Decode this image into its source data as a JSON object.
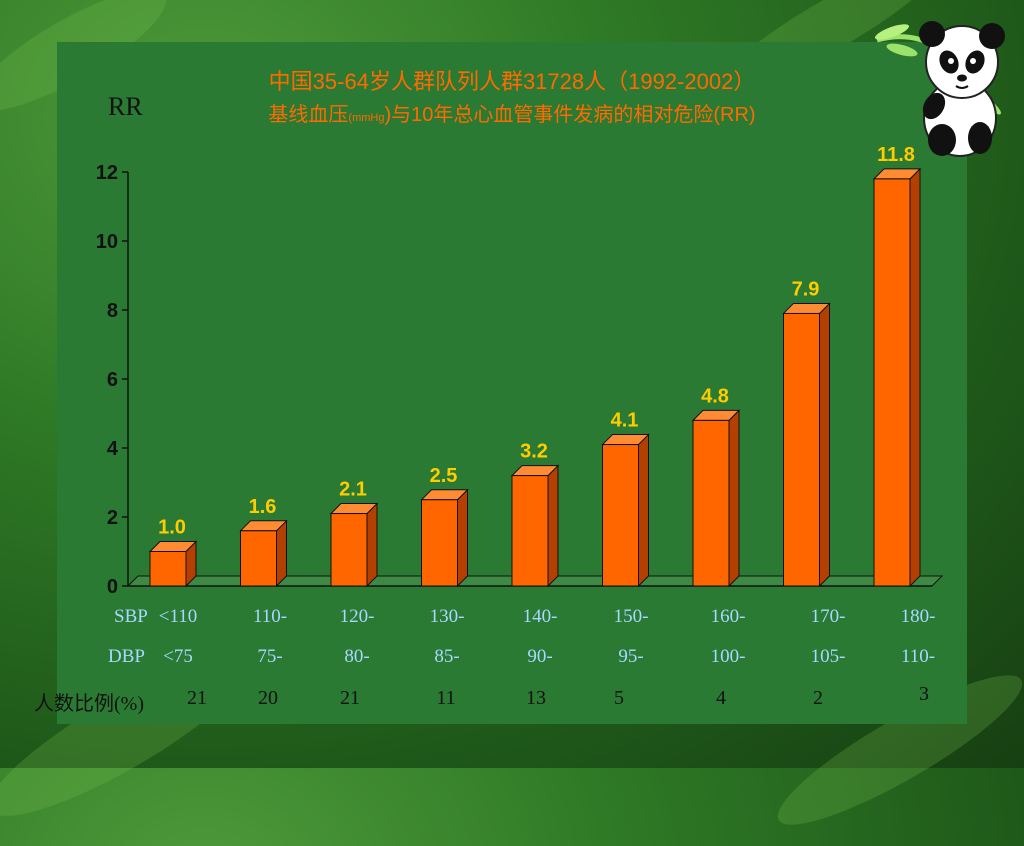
{
  "title_line1": "中国35-64岁人群队列人群31728人（1992-2002）",
  "title_line2_a": "基线血压",
  "title_line2_unit": "(mmHg",
  "title_line2_b": ")与10年总心血管事件发病的相对危险(RR)",
  "y_axis_label": "RR",
  "colors": {
    "bar_front": "#ff6600",
    "bar_side": "#b34000",
    "bar_top": "#ff8c33",
    "value_label": "#ffcc00"
  },
  "chart_data": {
    "type": "bar",
    "ylabel": "RR",
    "ylim": [
      0,
      12
    ],
    "yticks": [
      0,
      2,
      4,
      6,
      8,
      10,
      12
    ],
    "categories": [
      "<110 / <75",
      "110- / 75-",
      "120- / 80-",
      "130- / 85-",
      "140- / 90-",
      "150- / 95-",
      "160- / 100-",
      "170- / 105-",
      "180- / 110-"
    ],
    "values": [
      1.0,
      1.6,
      2.1,
      2.5,
      3.2,
      4.1,
      4.8,
      7.9,
      11.8
    ],
    "value_labels": [
      "1.0",
      "1.6",
      "2.1",
      "2.5",
      "3.2",
      "4.1",
      "4.8",
      "7.9",
      "11.8"
    ]
  },
  "sbp_row": {
    "label": "SBP",
    "values": [
      "<110",
      "110-",
      "120-",
      "130-",
      "140-",
      "150-",
      "160-",
      "170-",
      "180-"
    ]
  },
  "dbp_row": {
    "label": "DBP",
    "values": [
      "<75",
      "75-",
      "80-",
      "85-",
      "90-",
      "95-",
      "100-",
      "105-",
      "110-"
    ]
  },
  "pct_row": {
    "label": "人数比例(%)",
    "values": [
      "21",
      "20",
      "21",
      "11",
      "13",
      "5",
      "4",
      "2",
      "3"
    ]
  },
  "mascot_icon": "panda-with-bamboo-icon"
}
